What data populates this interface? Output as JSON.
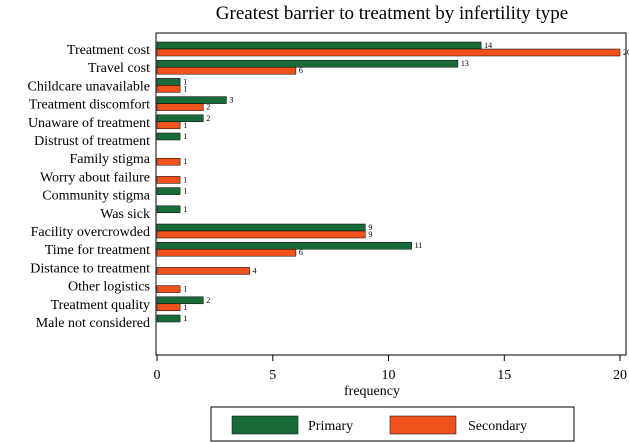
{
  "chart_data": {
    "type": "bar",
    "orientation": "horizontal",
    "title": "Greatest barrier to treatment by infertility type",
    "xlabel": "frequency",
    "ylabel": "",
    "xlim": [
      0,
      21
    ],
    "xticks": [
      0,
      5,
      10,
      15,
      20
    ],
    "grid": false,
    "legend_position": "bottom",
    "categories": [
      "Treatment cost",
      "Travel cost",
      "Childcare unavailable",
      "Treatment discomfort",
      "Unaware of treatment",
      "Distrust of treatment",
      "Family stigma",
      "Worry about failure",
      "Community stigma",
      "Was sick",
      "Facility overcrowded",
      "Time for treatment",
      "Distance to treatment",
      "Other logistics",
      "Treatment quality",
      "Male not considered"
    ],
    "series": [
      {
        "name": "Primary",
        "color": "#1a6b3a",
        "values": [
          14,
          13,
          1,
          3,
          2,
          1,
          null,
          null,
          1,
          1,
          9,
          11,
          null,
          null,
          2,
          1
        ]
      },
      {
        "name": "Secondary",
        "color": "#f0521e",
        "values": [
          20,
          6,
          1,
          2,
          1,
          null,
          1,
          1,
          null,
          null,
          9,
          6,
          4,
          1,
          1,
          null
        ]
      }
    ]
  }
}
